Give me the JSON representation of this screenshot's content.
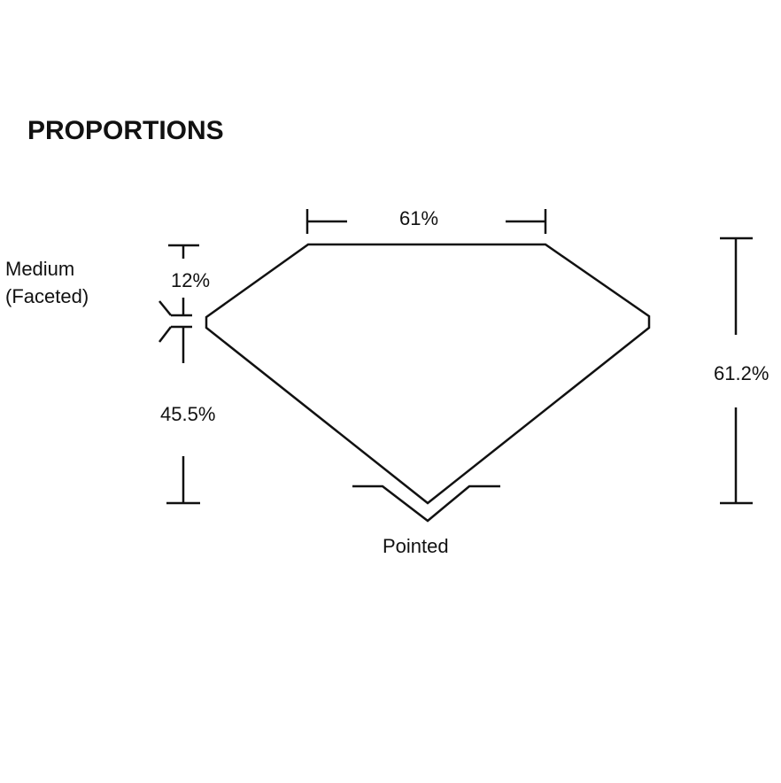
{
  "title": "PROPORTIONS",
  "labels": {
    "table": "61%",
    "crown": "12%",
    "pavilion": "45.5%",
    "depth": "61.2%",
    "girdle_line1": "Medium",
    "girdle_line2": "(Faceted)",
    "culet": "Pointed"
  },
  "colors": {
    "line": "#111111"
  }
}
